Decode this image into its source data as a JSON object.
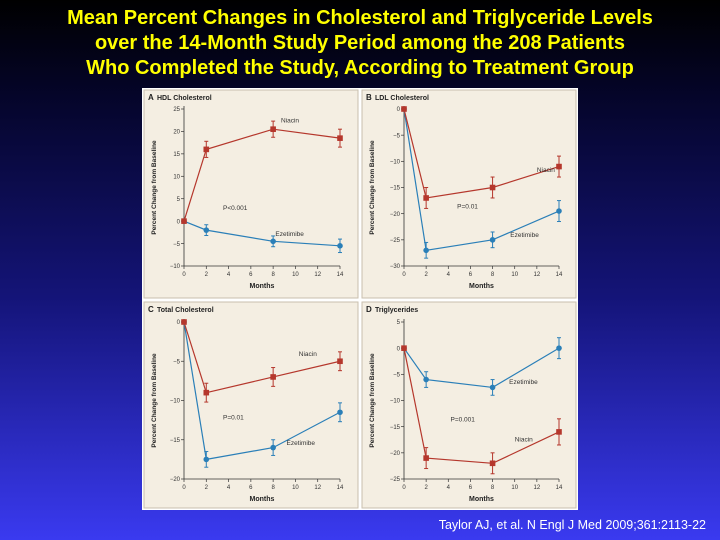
{
  "slide": {
    "title_lines": [
      "Mean Percent Changes in Cholesterol and Triglyceride Levels",
      "over the 14-Month Study Period among the 208 Patients",
      "Who Completed the Study, According to Treatment Group"
    ],
    "citation": "Taylor AJ, et al. N Engl J Med 2009;361:2113-22"
  },
  "colors": {
    "niacin": "#b5372c",
    "ezetimibe": "#2a7fb8",
    "panel_bg": "#f4eee2",
    "panel_border": "#c9bfae"
  },
  "chart_data": [
    {
      "type": "line",
      "panel_letter": "A",
      "title": "HDL Cholesterol",
      "xlabel": "Months",
      "ylabel": "Percent Change from Baseline",
      "x_ticks": [
        0,
        2,
        4,
        6,
        8,
        10,
        12,
        14
      ],
      "y_ticks": [
        -10,
        -5,
        0,
        5,
        10,
        15,
        20,
        25
      ],
      "ylim": [
        -10,
        25
      ],
      "xlim": [
        0,
        14
      ],
      "p_value": "P<0.001",
      "x": [
        0,
        2,
        8,
        14
      ],
      "series": [
        {
          "name": "Niacin",
          "values": [
            0,
            16,
            20.5,
            18.5
          ],
          "err": [
            0,
            1.8,
            1.8,
            2
          ]
        },
        {
          "name": "Ezetimibe",
          "values": [
            0,
            -2,
            -4.5,
            -5.5
          ],
          "err": [
            0,
            1.2,
            1.2,
            1.5
          ]
        }
      ],
      "label_pos": [
        {
          "x": 8.7,
          "y": 22
        },
        {
          "x": 8.2,
          "y": -3.3
        }
      ],
      "p_pos": {
        "x": 3.5,
        "y": 2.5
      }
    },
    {
      "type": "line",
      "panel_letter": "B",
      "title": "LDL Cholesterol",
      "xlabel": "Months",
      "ylabel": "Percent Change from Baseline",
      "x_ticks": [
        0,
        2,
        4,
        6,
        8,
        10,
        12,
        14
      ],
      "y_ticks": [
        -30,
        -25,
        -20,
        -15,
        -10,
        -5,
        0
      ],
      "ylim": [
        -30,
        0
      ],
      "xlim": [
        0,
        14
      ],
      "p_value": "P=0.01",
      "x": [
        0,
        2,
        8,
        14
      ],
      "series": [
        {
          "name": "Niacin",
          "values": [
            0,
            -17,
            -15,
            -11
          ],
          "err": [
            0,
            2,
            2,
            2
          ]
        },
        {
          "name": "Ezetimibe",
          "values": [
            0,
            -27,
            -25,
            -19.5
          ],
          "err": [
            0,
            1.5,
            1.5,
            2
          ]
        }
      ],
      "label_pos": [
        {
          "x": 12,
          "y": -12
        },
        {
          "x": 9.6,
          "y": -24.5
        }
      ],
      "p_pos": {
        "x": 4.8,
        "y": -19
      }
    },
    {
      "type": "line",
      "panel_letter": "C",
      "title": "Total Cholesterol",
      "xlabel": "Months",
      "ylabel": "Percent Change from Baseline",
      "x_ticks": [
        0,
        2,
        4,
        6,
        8,
        10,
        12,
        14
      ],
      "y_ticks": [
        -20,
        -15,
        -10,
        -5,
        0
      ],
      "ylim": [
        -20,
        0
      ],
      "xlim": [
        0,
        14
      ],
      "p_value": "P=0.01",
      "x": [
        0,
        2,
        8,
        14
      ],
      "series": [
        {
          "name": "Niacin",
          "values": [
            0,
            -9,
            -7,
            -5
          ],
          "err": [
            0,
            1.2,
            1.2,
            1.2
          ]
        },
        {
          "name": "Ezetimibe",
          "values": [
            0,
            -17.5,
            -16,
            -11.5
          ],
          "err": [
            0,
            1,
            1,
            1.2
          ]
        }
      ],
      "label_pos": [
        {
          "x": 10.3,
          "y": -4.3
        },
        {
          "x": 9.2,
          "y": -15.7
        }
      ],
      "p_pos": {
        "x": 3.5,
        "y": -12.4
      }
    },
    {
      "type": "line",
      "panel_letter": "D",
      "title": "Triglycerides",
      "xlabel": "Months",
      "ylabel": "Percent Change from Baseline",
      "x_ticks": [
        0,
        2,
        4,
        6,
        8,
        10,
        12,
        14
      ],
      "y_ticks": [
        -25,
        -20,
        -15,
        -10,
        -5,
        0,
        5
      ],
      "ylim": [
        -25,
        5
      ],
      "xlim": [
        0,
        14
      ],
      "p_value": "P=0.001",
      "x": [
        0,
        2,
        8,
        14
      ],
      "series": [
        {
          "name": "Niacin",
          "values": [
            0,
            -21,
            -22,
            -16
          ],
          "err": [
            0,
            2,
            2,
            2.5
          ]
        },
        {
          "name": "Ezetimibe",
          "values": [
            0,
            -6,
            -7.5,
            0
          ],
          "err": [
            0,
            1.5,
            1.5,
            2
          ]
        }
      ],
      "label_pos": [
        {
          "x": 10,
          "y": -17.8
        },
        {
          "x": 9.5,
          "y": -6.8
        }
      ],
      "p_pos": {
        "x": 4.2,
        "y": -14
      }
    }
  ]
}
